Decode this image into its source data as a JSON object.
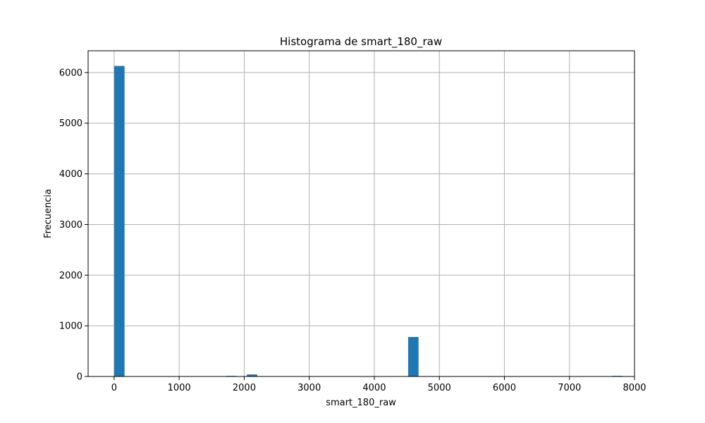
{
  "chart_data": {
    "type": "bar",
    "title": "Histograma de smart_180_raw",
    "xlabel": "smart_180_raw",
    "ylabel": "Frecuencia",
    "xlim": [
      -400,
      8000
    ],
    "ylim": [
      0,
      6430
    ],
    "xticks": [
      0,
      1000,
      2000,
      3000,
      4000,
      5000,
      6000,
      7000,
      8000
    ],
    "yticks": [
      0,
      1000,
      2000,
      3000,
      4000,
      5000,
      6000
    ],
    "grid": true,
    "bar_color": "#1f77b4",
    "bins": [
      {
        "x0": 0,
        "x1": 160,
        "count": 6130
      },
      {
        "x0": 1720,
        "x1": 1880,
        "count": 12
      },
      {
        "x0": 2040,
        "x1": 2200,
        "count": 40
      },
      {
        "x0": 4520,
        "x1": 4680,
        "count": 780
      },
      {
        "x0": 7660,
        "x1": 7820,
        "count": 12
      }
    ]
  }
}
